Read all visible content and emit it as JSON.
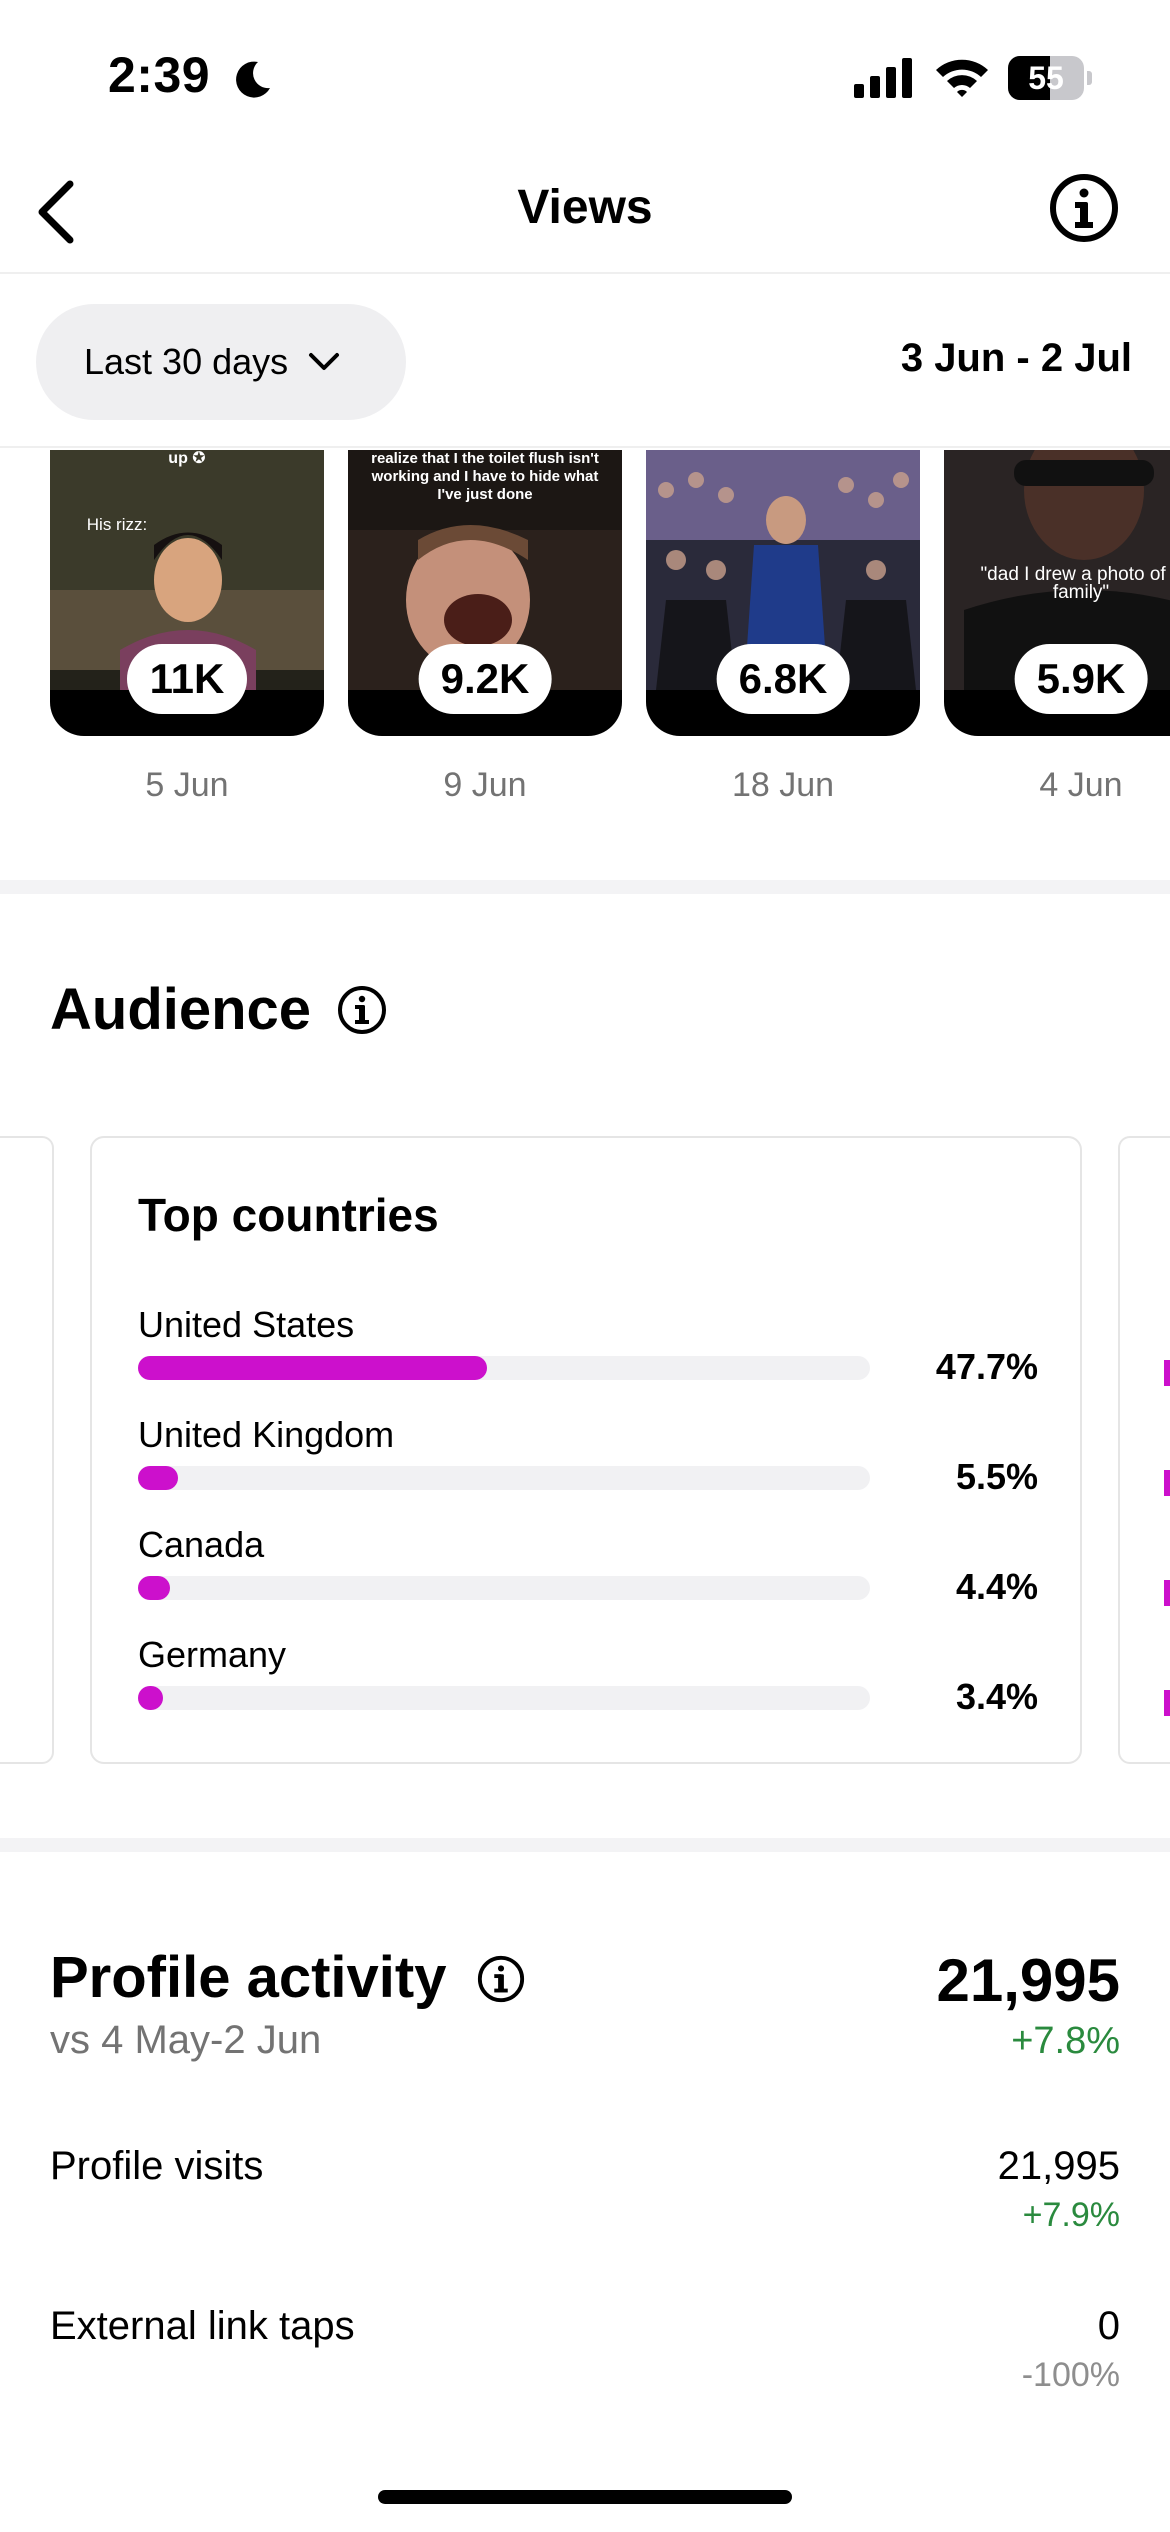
{
  "status_bar": {
    "time": "2:39",
    "battery": "55",
    "battery_level": 0.55
  },
  "header": {
    "title": "Views"
  },
  "filter": {
    "period": "Last 30 days",
    "date_range": "3 Jun - 2 Jul"
  },
  "thumbnails": [
    {
      "caption": "His rizz:",
      "views": "11K",
      "date": "5 Jun"
    },
    {
      "caption": "realize that I the toilet flush isn't working and I have to hide what I've just done",
      "views": "9.2K",
      "date": "9 Jun"
    },
    {
      "caption": "",
      "views": "6.8K",
      "date": "18 Jun"
    },
    {
      "caption": "\"dad I drew a photo of o family\"",
      "views": "5.9K",
      "date": "4 Jun"
    }
  ],
  "audience": {
    "title": "Audience",
    "top_countries": {
      "title": "Top countries",
      "rows": [
        {
          "name": "United States",
          "pct_label": "47.7%",
          "value": 47.7
        },
        {
          "name": "United Kingdom",
          "pct_label": "5.5%",
          "value": 5.5
        },
        {
          "name": "Canada",
          "pct_label": "4.4%",
          "value": 4.4
        },
        {
          "name": "Germany",
          "pct_label": "3.4%",
          "value": 3.4
        }
      ]
    }
  },
  "profile_activity": {
    "title": "Profile activity",
    "compare": "vs 4 May-2 Jun",
    "total": "21,995",
    "change": "+7.8%",
    "metrics": [
      {
        "label": "Profile visits",
        "value": "21,995",
        "change": "+7.9%",
        "change_color": "#2a8a3e"
      },
      {
        "label": "External link taps",
        "value": "0",
        "change": "-100%",
        "change_color": "#8e8e8e"
      }
    ]
  },
  "colors": {
    "accent": "#cc10cc",
    "positive": "#2a8a3e",
    "muted": "#737373"
  }
}
